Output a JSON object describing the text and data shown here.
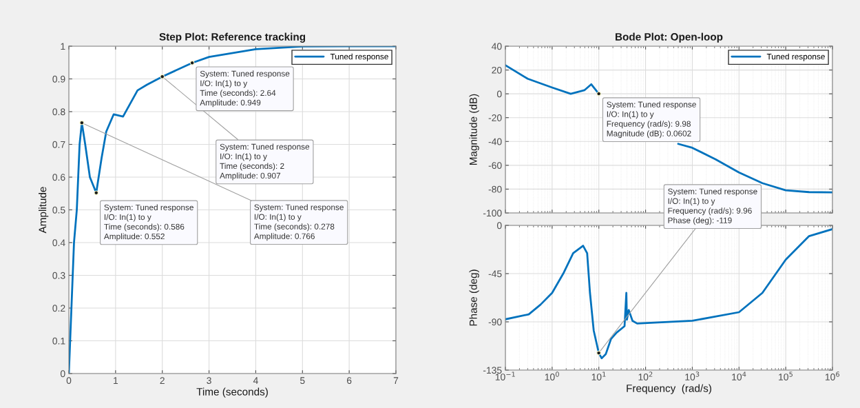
{
  "chart_data": [
    {
      "type": "line",
      "title": "Step Plot: Reference tracking",
      "xlabel": "Time (seconds)",
      "ylabel": "Amplitude",
      "series": [
        {
          "name": "Tuned response",
          "color": "#0072bd",
          "x": [
            0,
            0.11,
            0.17,
            0.23,
            0.278,
            0.35,
            0.45,
            0.586,
            0.7,
            0.8,
            0.96,
            1.16,
            1.47,
            1.67,
            2,
            2.64,
            3,
            4,
            5,
            6,
            7
          ],
          "values": [
            0,
            0.4,
            0.5,
            0.7,
            0.766,
            0.7,
            0.6,
            0.552,
            0.658,
            0.739,
            0.792,
            0.785,
            0.865,
            0.882,
            0.907,
            0.949,
            0.967,
            0.991,
            0.999,
            1,
            1
          ]
        }
      ],
      "xlim": [
        0,
        7
      ],
      "xticks": [
        0,
        1,
        2,
        3,
        4,
        5,
        6,
        7
      ],
      "ylim": [
        0,
        1
      ],
      "yticks": [
        0,
        0.1,
        0.2,
        0.3,
        0.4,
        0.5,
        0.6,
        0.7,
        0.8,
        0.9,
        1
      ],
      "grid": true,
      "legend": "top right",
      "annotations": [
        {
          "text": "System: Tuned response\nI/O: In(1) to y\nTime (seconds): 2\nAmplitude: 0.907",
          "x": 2,
          "y": 0.907
        },
        {
          "text": "System: Tuned response\nI/O: In(1) to y\nTime (seconds): 0.278\nAmplitude: 0.766",
          "x": 0.278,
          "y": 0.766
        },
        {
          "text": "System: Tuned response\nI/O: In(1) to y\nTime (seconds): 2.64\nAmplitude: 0.949",
          "x": 2.64,
          "y": 0.949
        },
        {
          "text": "System: Tuned response\nI/O: In(1) to y\nTime (seconds): 0.586\nAmplitude: 0.552",
          "x": 0.586,
          "y": 0.552
        }
      ]
    },
    {
      "type": "line",
      "title": "Bode Plot: Open-loop",
      "ylabel": "Magnitude (dB)",
      "log": "x",
      "series": [
        {
          "name": "Tuned response",
          "color": "#0072bd",
          "x": [
            0.1,
            0.3,
            1,
            2.5,
            4.9,
            6.9,
            9.98,
            20,
            50,
            100,
            200,
            500,
            1000,
            3162,
            10000,
            31623,
            100000,
            316228,
            1000000
          ],
          "values": [
            24,
            12.7,
            5.3,
            0,
            3,
            8,
            0.0602,
            null,
            null,
            null,
            null,
            -42,
            -45.3,
            -55,
            -66,
            -75,
            -81,
            -82.5,
            -82.7
          ]
        }
      ],
      "xlim": [
        0.1,
        1000000
      ],
      "xticks": [
        0.1,
        1,
        10,
        100,
        1000,
        10000,
        100000,
        1000000
      ],
      "ylim": [
        -100,
        40
      ],
      "yticks": [
        -100,
        -80,
        -60,
        -40,
        -20,
        0,
        20,
        40
      ],
      "tick_labels": "y",
      "grid": true,
      "legend": "top right",
      "annotations": [
        {
          "text": "System: Tuned response\nI/O: In(1) to y\nFrequency (rad/s): 9.98\nMagnitude (dB): 0.0602",
          "x": 9.98,
          "y": 0.0602
        }
      ]
    },
    {
      "type": "line",
      "xlabel": "Frequency  (rad/s)",
      "ylabel": "Phase (deg)",
      "log": "x",
      "series": [
        {
          "color": "#0072bd",
          "x": [
            0.1,
            0.316,
            0.562,
            1,
            1.78,
            2.82,
            4.6,
            5.62,
            6.46,
            7.76,
            9.96,
            11.5,
            14.1,
            18.2,
            24,
            35.5,
            38.8,
            39.8,
            43.7,
            52.5,
            66,
            1000,
            10000,
            31623,
            100000,
            316228,
            1000000
          ],
          "values": [
            -87.6,
            -83,
            -74,
            -63,
            -44,
            -26,
            -19,
            -26,
            -63,
            -98,
            -119,
            -124,
            -120,
            -106,
            -100,
            -94,
            -63,
            -88,
            -79,
            -89,
            -91.5,
            -89,
            -81,
            -63,
            -32,
            -10,
            -3.5
          ]
        }
      ],
      "xlim": [
        0.1,
        1000000
      ],
      "xticks": [
        {
          "value": 0.1,
          "label": "10$^{−1}$"
        },
        {
          "value": 1,
          "label": "10$^{0}$"
        },
        {
          "value": 10,
          "label": "10$^{1}$"
        },
        {
          "value": 100,
          "label": "10$^{2}$"
        },
        {
          "value": 1000,
          "label": "10$^{3}$"
        },
        {
          "value": 10000,
          "label": "10$^{4}$"
        },
        {
          "value": 100000,
          "label": "10$^{5}$"
        },
        {
          "value": 1000000,
          "label": "10$^{6}$"
        }
      ],
      "ylim": [
        -135,
        0
      ],
      "yticks": [
        -135,
        -90,
        -45,
        0
      ],
      "grid": true,
      "annotations": [
        {
          "text": "System: Tuned response\nI/O: In(1) to y\nFrequency (rad/s): 9.96\nPhase (deg): -119",
          "x": 9.96,
          "y": -119
        }
      ]
    }
  ]
}
